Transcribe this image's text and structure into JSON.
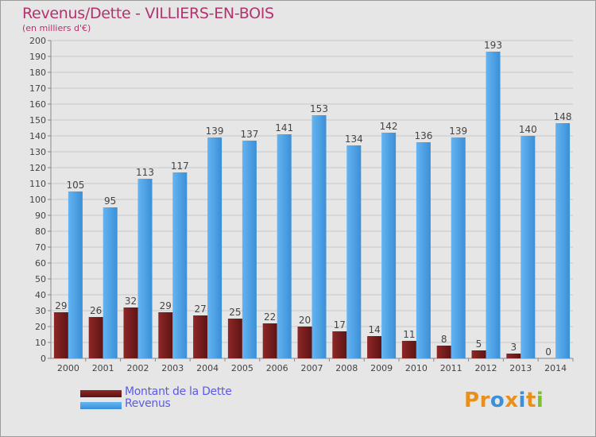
{
  "header": {
    "title": "Revenus/Dette - VILLIERS-EN-BOIS",
    "subtitle": "(en milliers d'€)"
  },
  "legend": {
    "items": [
      {
        "label": "Montant de la Dette",
        "color": "#7a1e1e"
      },
      {
        "label": "Revenus",
        "color": "#4a9ee2"
      }
    ]
  },
  "logo": {
    "text": "Proxiti",
    "letters": [
      {
        "ch": "P",
        "color": "#e8901a"
      },
      {
        "ch": "r",
        "color": "#e8901a"
      },
      {
        "ch": "o",
        "color": "#3d8fd8"
      },
      {
        "ch": "x",
        "color": "#e8901a"
      },
      {
        "ch": "i",
        "color": "#3d8fd8"
      },
      {
        "ch": "t",
        "color": "#e8901a"
      },
      {
        "ch": "i",
        "color": "#7dbf2e"
      }
    ]
  },
  "chart_data": {
    "type": "bar",
    "title": "Revenus/Dette - VILLIERS-EN-BOIS",
    "subtitle": "(en milliers d'€)",
    "categories": [
      "2000",
      "2001",
      "2002",
      "2003",
      "2004",
      "2005",
      "2006",
      "2007",
      "2008",
      "2009",
      "2010",
      "2011",
      "2012",
      "2013",
      "2014"
    ],
    "series": [
      {
        "name": "Montant de la Dette",
        "color": "#7a1e1e",
        "values": [
          29,
          26,
          32,
          29,
          27,
          25,
          22,
          20,
          17,
          14,
          11,
          8,
          5,
          3,
          0
        ]
      },
      {
        "name": "Revenus",
        "color": "#4a9ee2",
        "values": [
          105,
          95,
          113,
          117,
          139,
          137,
          141,
          153,
          134,
          142,
          136,
          139,
          193,
          140,
          148
        ]
      }
    ],
    "ylim": [
      0,
      200
    ],
    "ytick_step": 10,
    "grid": true,
    "legend_position": "bottom-left"
  }
}
